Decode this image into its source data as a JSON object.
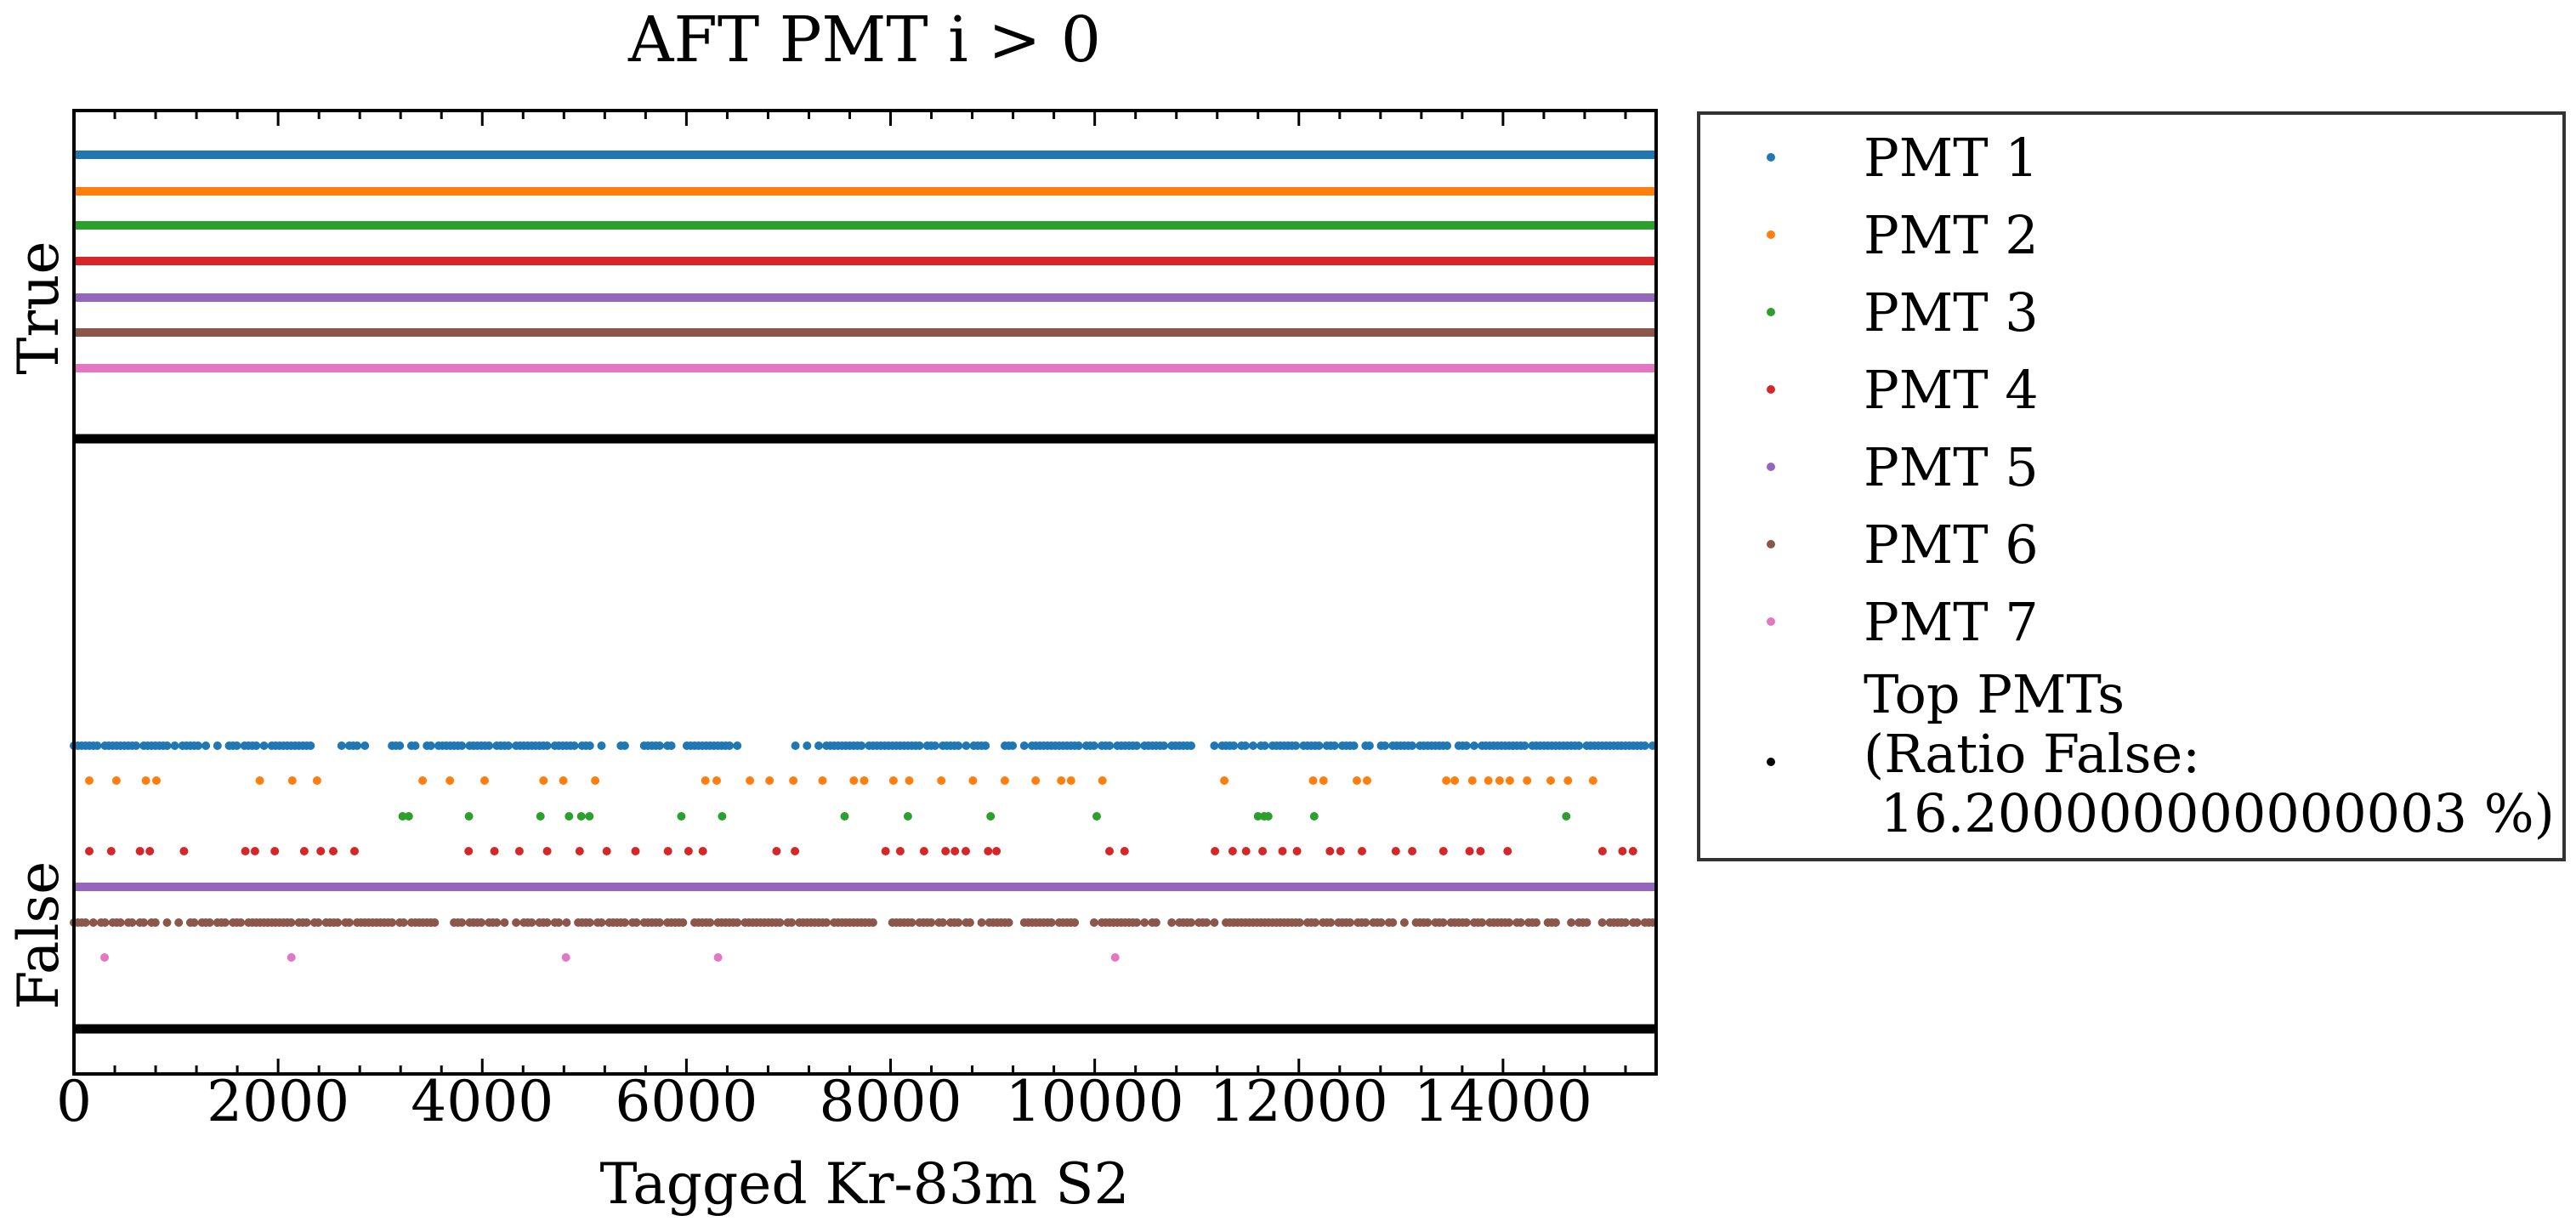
{
  "chart_data": {
    "type": "scatter",
    "title": "AFT PMT i > 0",
    "xlabel": "Tagged Kr-83m S2",
    "ylabel": "",
    "xlim": [
      0,
      15500
    ],
    "xticks": [
      "0",
      "2000",
      "4000",
      "6000",
      "8000",
      "10000",
      "12000",
      "14000"
    ],
    "xtick_values": [
      0,
      2000,
      4000,
      6000,
      8000,
      10000,
      12000,
      14000
    ],
    "y_categories": [
      "False",
      "True"
    ],
    "grid": false,
    "legend_placement": "outside-right",
    "series": [
      {
        "name": "PMT 1",
        "color": "#1f77b4",
        "true_value": "continuous",
        "false_pattern": "dense-gaps",
        "false_gaps": [
          [
            2350,
            2600
          ],
          [
            2900,
            3100
          ],
          [
            3200,
            3300
          ],
          [
            3350,
            3450
          ],
          [
            4650,
            4700
          ],
          [
            5200,
            5300
          ],
          [
            6500,
            6700
          ],
          [
            6700,
            6850
          ],
          [
            6900,
            7050
          ],
          [
            8950,
            9100
          ],
          [
            9200,
            9300
          ],
          [
            10950,
            11100
          ],
          [
            11500,
            11550
          ],
          [
            12550,
            12650
          ],
          [
            12700,
            12800
          ]
        ]
      },
      {
        "name": "PMT 2",
        "color": "#ff7f0e",
        "true_value": "continuous",
        "false_pattern": "sparse"
      },
      {
        "name": "PMT 3",
        "color": "#2ca02c",
        "true_value": "continuous",
        "false_points": [
          3220,
          3280,
          3870,
          4570,
          4850,
          4970,
          5050,
          5950,
          6350,
          7550,
          8170,
          8980,
          10020,
          11600,
          11660,
          11700,
          12150,
          14620
        ]
      },
      {
        "name": "PMT 4",
        "color": "#d62728",
        "true_value": "continuous",
        "false_pattern": "sparse"
      },
      {
        "name": "PMT 5",
        "color": "#9467bd",
        "true_value": "continuous",
        "false_pattern": "continuous"
      },
      {
        "name": "PMT 6",
        "color": "#8c564b",
        "true_value": "continuous",
        "false_pattern": "dense-gaps"
      },
      {
        "name": "PMT 7",
        "color": "#e377c2",
        "true_value": "continuous",
        "false_points": [
          300,
          2130,
          4820,
          6310,
          10200
        ]
      },
      {
        "name": "Top PMTs\n(Ratio False:\n 16.200000000000003 %)",
        "color": "#000000",
        "true_value": "continuous",
        "false_pattern": "continuous"
      }
    ],
    "legend": {
      "entries": [
        {
          "label": "PMT 1",
          "color": "#1f77b4"
        },
        {
          "label": "PMT 2",
          "color": "#ff7f0e"
        },
        {
          "label": "PMT 3",
          "color": "#2ca02c"
        },
        {
          "label": "PMT 4",
          "color": "#d62728"
        },
        {
          "label": "PMT 5",
          "color": "#9467bd"
        },
        {
          "label": "PMT 6",
          "color": "#8c564b"
        },
        {
          "label": "PMT 7",
          "color": "#e377c2"
        }
      ],
      "top_entry_lines": [
        "Top PMTs",
        "(Ratio False:",
        " 16.200000000000003 %)"
      ],
      "top_entry_color": "#000000"
    }
  }
}
